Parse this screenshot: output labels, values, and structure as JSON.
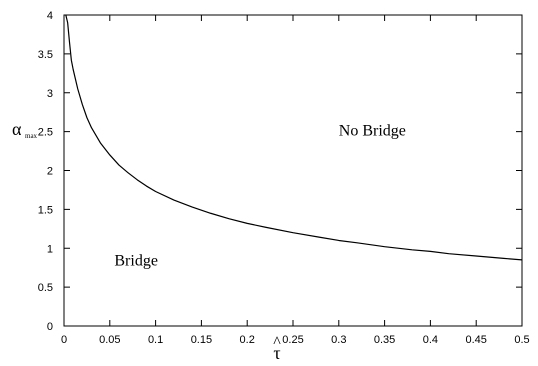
{
  "chart_data": {
    "type": "line",
    "xlabel": "τ",
    "xlabel_hat": "^",
    "ylabel": "α",
    "ylabel_sub": "max",
    "xlim": [
      0,
      0.5
    ],
    "ylim": [
      0,
      4
    ],
    "xticks": [
      0,
      0.05,
      0.1,
      0.15,
      0.2,
      0.25,
      0.3,
      0.35,
      0.4,
      0.45,
      0.5
    ],
    "xtick_labels": [
      "0",
      "0.05",
      "0.1",
      "0.15",
      "0.2",
      "0.25",
      "0.3",
      "0.35",
      "0.4",
      "0.45",
      "0.5"
    ],
    "yticks": [
      0,
      0.5,
      1,
      1.5,
      2,
      2.5,
      3,
      3.5,
      4
    ],
    "ytick_labels": [
      "0",
      "0.5",
      "1",
      "1.5",
      "2",
      "2.5",
      "3",
      "3.5",
      "4"
    ],
    "grid": false,
    "series": [
      {
        "x": [
          0.002,
          0.004,
          0.006,
          0.008,
          0.01,
          0.015,
          0.02,
          0.025,
          0.03,
          0.04,
          0.05,
          0.06,
          0.07,
          0.08,
          0.09,
          0.1,
          0.12,
          0.14,
          0.16,
          0.18,
          0.2,
          0.22,
          0.25,
          0.28,
          0.3,
          0.32,
          0.35,
          0.38,
          0.4,
          0.42,
          0.45,
          0.48,
          0.5
        ],
        "y": [
          4.0,
          3.9,
          3.65,
          3.42,
          3.3,
          3.05,
          2.85,
          2.68,
          2.55,
          2.35,
          2.2,
          2.07,
          1.97,
          1.88,
          1.8,
          1.73,
          1.62,
          1.53,
          1.45,
          1.38,
          1.32,
          1.27,
          1.2,
          1.14,
          1.1,
          1.07,
          1.02,
          0.98,
          0.96,
          0.93,
          0.9,
          0.87,
          0.85
        ]
      }
    ],
    "annotations": [
      {
        "text": "No Bridge",
        "x": 0.3,
        "y": 2.45
      },
      {
        "text": "Bridge",
        "x": 0.055,
        "y": 0.78
      }
    ]
  }
}
